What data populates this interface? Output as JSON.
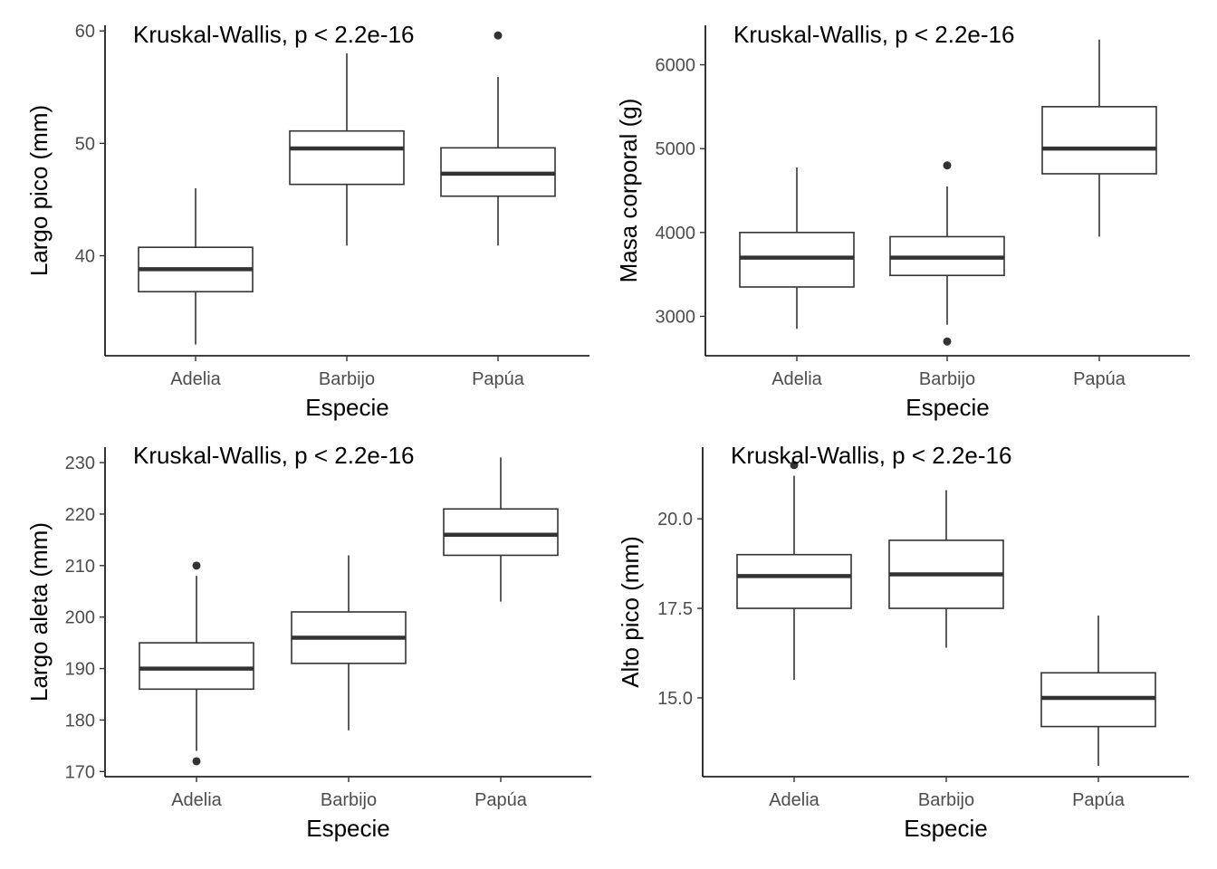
{
  "chart_data": [
    {
      "type": "box",
      "xlabel": "Especie",
      "ylabel": "Largo pico (mm)",
      "annotation": "Kruskal-Wallis, p < 2.2e-16",
      "categories": [
        "Adelia",
        "Barbijo",
        "Papúa"
      ],
      "yticks": [
        "40",
        "50",
        "60"
      ],
      "ylim": [
        31.1,
        60.5
      ],
      "boxes": [
        {
          "category": "Adelia",
          "min": 32.1,
          "q1": 36.8,
          "median": 38.8,
          "q3": 40.75,
          "max": 46.0,
          "outliers": []
        },
        {
          "category": "Barbijo",
          "min": 40.9,
          "q1": 46.35,
          "median": 49.55,
          "q3": 51.1,
          "max": 58.0,
          "outliers": []
        },
        {
          "category": "Papúa",
          "min": 40.9,
          "q1": 45.3,
          "median": 47.3,
          "q3": 49.6,
          "max": 55.9,
          "outliers": [
            59.6
          ]
        }
      ]
    },
    {
      "type": "box",
      "xlabel": "Especie",
      "ylabel": "Masa corporal (g)",
      "annotation": "Kruskal-Wallis, p < 2.2e-16",
      "categories": [
        "Adelia",
        "Barbijo",
        "Papúa"
      ],
      "yticks": [
        "3000",
        "4000",
        "5000",
        "6000"
      ],
      "ylim": [
        2530,
        6470
      ],
      "boxes": [
        {
          "category": "Adelia",
          "min": 2850,
          "q1": 3350,
          "median": 3700,
          "q3": 4000,
          "max": 4775,
          "outliers": []
        },
        {
          "category": "Barbijo",
          "min": 2900,
          "q1": 3488,
          "median": 3700,
          "q3": 3950,
          "max": 4550,
          "outliers": [
            4800,
            2700
          ]
        },
        {
          "category": "Papúa",
          "min": 3950,
          "q1": 4700,
          "median": 5000,
          "q3": 5500,
          "max": 6300,
          "outliers": []
        }
      ]
    },
    {
      "type": "box",
      "xlabel": "Especie",
      "ylabel": "Largo aleta (mm)",
      "annotation": "Kruskal-Wallis, p < 2.2e-16",
      "categories": [
        "Adelia",
        "Barbijo",
        "Papúa"
      ],
      "yticks": [
        "170",
        "180",
        "190",
        "200",
        "210",
        "220",
        "230"
      ],
      "ylim": [
        169.0,
        233.0
      ],
      "boxes": [
        {
          "category": "Adelia",
          "min": 174,
          "q1": 186,
          "median": 190,
          "q3": 195,
          "max": 208,
          "outliers": [
            210,
            172
          ]
        },
        {
          "category": "Barbijo",
          "min": 178,
          "q1": 191,
          "median": 196,
          "q3": 201,
          "max": 212,
          "outliers": []
        },
        {
          "category": "Papúa",
          "min": 203,
          "q1": 212,
          "median": 216,
          "q3": 221,
          "max": 231,
          "outliers": []
        }
      ]
    },
    {
      "type": "box",
      "xlabel": "Especie",
      "ylabel": "Alto pico (mm)",
      "annotation": "Kruskal-Wallis, p < 2.2e-16",
      "categories": [
        "Adelia",
        "Barbijo",
        "Papúa"
      ],
      "yticks": [
        "15.0",
        "17.5",
        "20.0"
      ],
      "ylim": [
        12.8,
        22.0
      ],
      "boxes": [
        {
          "category": "Adelia",
          "min": 15.5,
          "q1": 17.5,
          "median": 18.4,
          "q3": 19.0,
          "max": 21.2,
          "outliers": [
            21.5
          ]
        },
        {
          "category": "Barbijo",
          "min": 16.4,
          "q1": 17.5,
          "median": 18.45,
          "q3": 19.4,
          "max": 20.8,
          "outliers": []
        },
        {
          "category": "Papúa",
          "min": 13.1,
          "q1": 14.2,
          "median": 15.0,
          "q3": 15.7,
          "max": 17.3,
          "outliers": []
        }
      ]
    }
  ]
}
